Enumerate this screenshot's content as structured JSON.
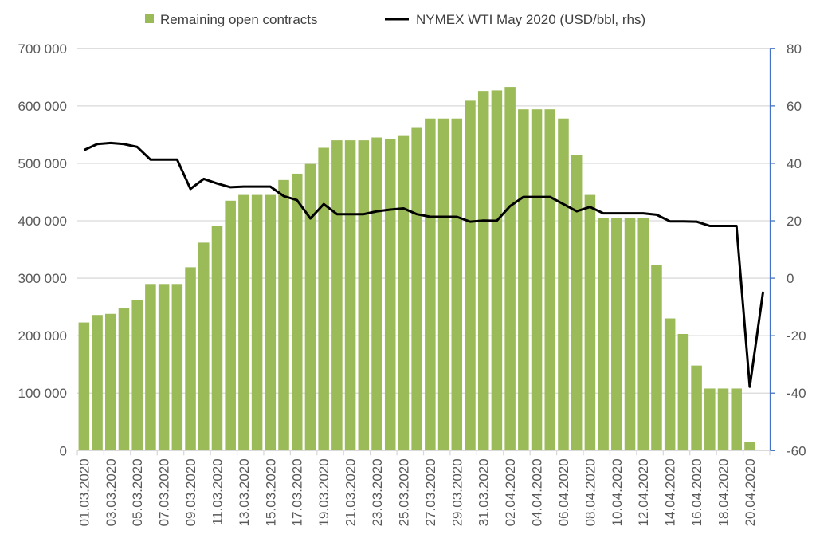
{
  "chart_data": {
    "type": "bar+line",
    "legend": {
      "placement": "top-center",
      "items": [
        {
          "label": "Remaining open contracts",
          "kind": "bar",
          "color": "#9BBB59"
        },
        {
          "label": "NYMEX WTI May 2020 (USD/bbl, rhs)",
          "kind": "line",
          "color": "#000000"
        }
      ]
    },
    "x_tick_labels": [
      "01.03.2020",
      "03.03.2020",
      "05.03.2020",
      "07.03.2020",
      "09.03.2020",
      "11.03.2020",
      "13.03.2020",
      "15.03.2020",
      "17.03.2020",
      "19.03.2020",
      "21.03.2020",
      "23.03.2020",
      "25.03.2020",
      "27.03.2020",
      "29.03.2020",
      "31.03.2020",
      "02.04.2020",
      "04.04.2020",
      "06.04.2020",
      "08.04.2020",
      "10.04.2020",
      "12.04.2020",
      "14.04.2020",
      "16.04.2020",
      "18.04.2020",
      "20.04.2020"
    ],
    "x_tick_every_n_days": 2,
    "n_days": 52,
    "left_axis": {
      "ylim": [
        0,
        700000
      ],
      "ticks": [
        0,
        100000,
        200000,
        300000,
        400000,
        500000,
        600000,
        700000
      ],
      "tick_labels": [
        "0",
        "100 000",
        "200 000",
        "300 000",
        "400 000",
        "500 000",
        "600 000",
        "700 000"
      ]
    },
    "right_axis": {
      "ylim": [
        -60,
        80
      ],
      "ticks": [
        -60,
        -40,
        -20,
        0,
        20,
        40,
        60,
        80
      ],
      "tick_labels": [
        "-60",
        "-40",
        "-20",
        "0",
        "20",
        "40",
        "60",
        "80"
      ],
      "color": "#4472C4"
    },
    "grid": true,
    "series": [
      {
        "name": "Remaining open contracts",
        "axis": "left",
        "type": "bar",
        "color": "#9BBB59",
        "values": [
          223000,
          236000,
          238000,
          248000,
          262000,
          290000,
          290000,
          290000,
          319000,
          362000,
          391000,
          435000,
          445000,
          445000,
          445000,
          471000,
          482000,
          499000,
          527000,
          540000,
          540000,
          540000,
          545000,
          542000,
          549000,
          563000,
          578000,
          578000,
          578000,
          609000,
          626000,
          627000,
          633000,
          594000,
          594000,
          594000,
          578000,
          514000,
          445000,
          405000,
          405000,
          405000,
          405000,
          323000,
          230000,
          203000,
          148000,
          108000,
          108000,
          108000,
          15000
        ]
      },
      {
        "name": "NYMEX WTI May 2020 (USD/bbl, rhs)",
        "axis": "right",
        "type": "line",
        "color": "#000000",
        "values": [
          44.6,
          46.7,
          47.1,
          46.7,
          45.7,
          41.3,
          41.3,
          41.3,
          31.1,
          34.6,
          33.0,
          31.7,
          31.9,
          31.9,
          31.9,
          28.6,
          27.2,
          20.8,
          25.8,
          22.3,
          22.3,
          22.3,
          23.3,
          23.9,
          24.3,
          22.3,
          21.4,
          21.4,
          21.4,
          19.7,
          20.1,
          20.0,
          25.1,
          28.3,
          28.3,
          28.3,
          25.8,
          23.3,
          24.8,
          22.6,
          22.6,
          22.6,
          22.6,
          22.1,
          19.8,
          19.8,
          19.7,
          18.2,
          18.2,
          18.2,
          -37.8,
          -4.7
        ]
      }
    ]
  }
}
